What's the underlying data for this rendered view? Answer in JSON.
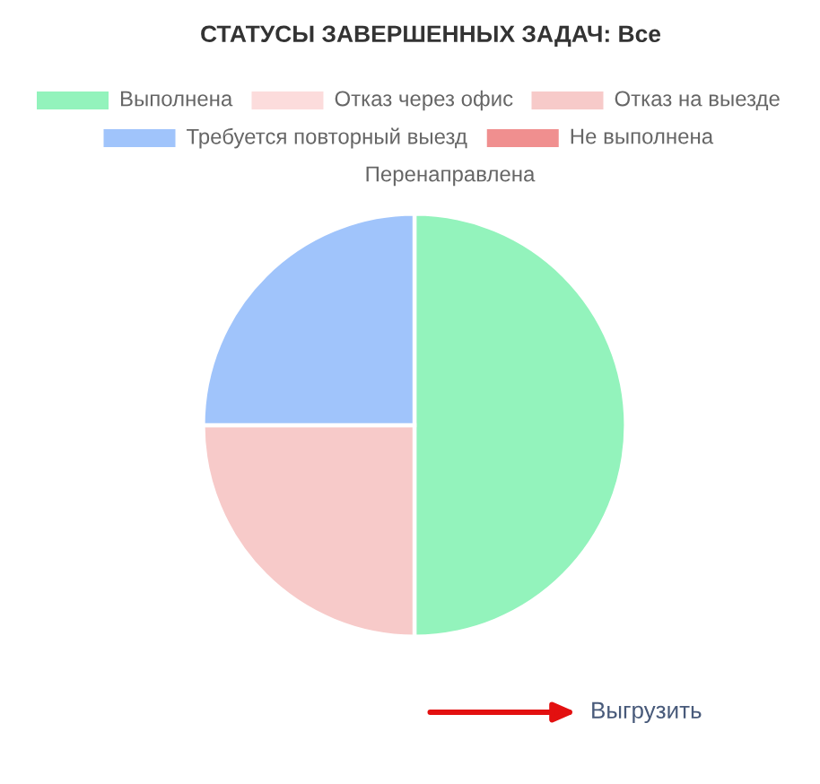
{
  "chart_data": {
    "type": "pie",
    "title": "СТАТУСЫ ЗАВЕРШЕННЫХ ЗАДАЧ: Все",
    "categories": [
      "Выполнена",
      "Отказ через офис",
      "Отказ на выезде",
      "Требуется повторный выезд",
      "Не выполнена",
      "Перенаправлена"
    ],
    "values": [
      50,
      0,
      25,
      25,
      0,
      0
    ],
    "colors": [
      "#93f3bc",
      "#fcdcdc",
      "#f7cac9",
      "#a0c4fb",
      "#f08f8f",
      null
    ],
    "legend": "top",
    "annotations": [
      "Выгрузить"
    ]
  }
}
